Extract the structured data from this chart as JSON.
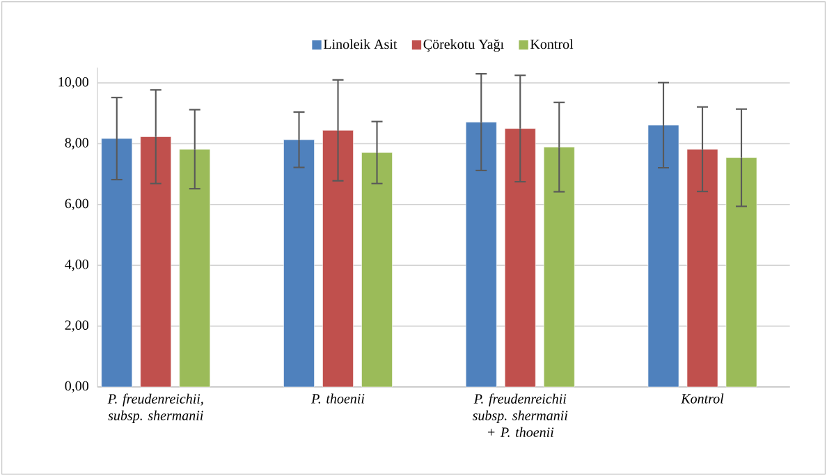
{
  "chart_data": {
    "type": "bar",
    "categories": [
      "P. freudenreichii, subsp. shermanii",
      "P. thoenii",
      "P. freudenreichii subsp. shermanii + P. thoenii",
      "Kontrol"
    ],
    "series": [
      {
        "name": "Linoleik Asit",
        "color": "#4f81bd",
        "values": [
          8.17,
          8.13,
          8.71,
          8.61
        ],
        "errors": [
          1.35,
          0.91,
          1.59,
          1.4
        ]
      },
      {
        "name": "Çörekotu Yağı",
        "color": "#c0504d",
        "values": [
          8.23,
          8.44,
          8.5,
          7.82
        ],
        "errors": [
          1.54,
          1.66,
          1.75,
          1.39
        ]
      },
      {
        "name": "Kontrol",
        "color": "#9bbb59",
        "values": [
          7.82,
          7.71,
          7.89,
          7.54
        ],
        "errors": [
          1.3,
          1.02,
          1.47,
          1.6
        ]
      }
    ],
    "ylim": [
      0,
      10.5
    ],
    "yticks": [
      {
        "value": 0,
        "label": "0,00"
      },
      {
        "value": 2,
        "label": "2,00"
      },
      {
        "value": 4,
        "label": "4,00"
      },
      {
        "value": 6,
        "label": "6,00"
      },
      {
        "value": 8,
        "label": "8,00"
      },
      {
        "value": 10,
        "label": "10,00"
      }
    ],
    "grid": "y",
    "legend": "top"
  }
}
